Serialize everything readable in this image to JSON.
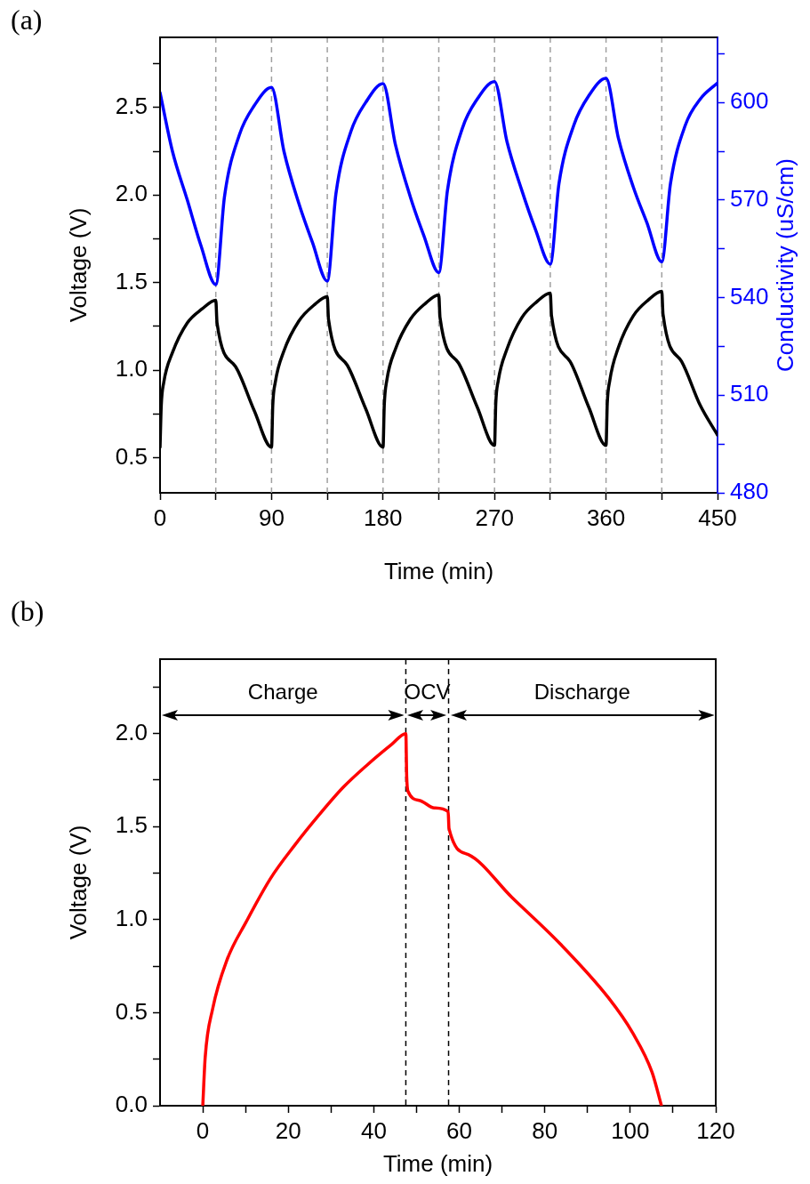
{
  "chart_data": [
    {
      "type": "line",
      "title": "(a)",
      "xlabel": "Time (min)",
      "ylabel": "Voltage (V)",
      "y2label": "Conductivity (uS/cm)",
      "xlim": [
        0,
        450
      ],
      "xticks": [
        0,
        {
          "value": 45,
          "label": null
        },
        90,
        {
          "value": 135,
          "label": null
        },
        180,
        {
          "value": 225,
          "label": null
        },
        270,
        {
          "value": 315,
          "label": null
        },
        360,
        {
          "value": 405,
          "label": null
        },
        450
      ],
      "ylim": [
        0.3,
        2.9
      ],
      "yticks": [
        0.5,
        {
          "value": 0.75,
          "label": null
        },
        {
          "value": 1,
          "label": "1.0"
        },
        {
          "value": 1.25,
          "label": null
        },
        1.5,
        {
          "value": 1.75,
          "label": null
        },
        {
          "value": 2,
          "label": "2.0"
        },
        {
          "value": 2.25,
          "label": null
        },
        2.5,
        {
          "value": 2.75,
          "label": null
        }
      ],
      "y2lim": [
        480,
        620
      ],
      "y2ticks": [
        480,
        {
          "value": 495,
          "label": null
        },
        510,
        {
          "value": 525,
          "label": null
        },
        540,
        {
          "value": 555,
          "label": null
        },
        570,
        {
          "value": 585,
          "label": null
        },
        600,
        {
          "value": 615,
          "label": null
        }
      ],
      "series": [
        {
          "color": "#000000",
          "x": [
            0,
            1,
            3,
            10,
            22,
            34,
            45,
            46,
            61,
            76,
            90,
            91,
            93,
            100,
            112,
            124,
            135,
            136,
            151,
            166,
            180,
            181,
            183,
            190,
            202,
            214,
            225,
            226,
            241,
            256,
            270,
            271,
            273,
            280,
            292,
            304,
            315,
            316,
            331,
            346,
            360,
            361,
            363,
            370,
            382,
            394,
            405,
            406,
            421,
            436,
            450
          ],
          "values": [
            0.56,
            0.8,
            0.93,
            1.1,
            1.27,
            1.35,
            1.4,
            1.27,
            1.02,
            0.77,
            0.56,
            0.8,
            0.93,
            1.11,
            1.28,
            1.37,
            1.42,
            1.29,
            1.03,
            0.78,
            0.56,
            0.8,
            0.94,
            1.12,
            1.29,
            1.38,
            1.43,
            1.3,
            1.04,
            0.79,
            0.57,
            0.81,
            0.94,
            1.12,
            1.3,
            1.39,
            1.44,
            1.31,
            1.05,
            0.79,
            0.57,
            0.81,
            0.94,
            1.13,
            1.31,
            1.4,
            1.45,
            1.32,
            1.05,
            0.8,
            0.63
          ]
        },
        {
          "color": "#0000ff",
          "axis": "y2",
          "x": [
            0,
            10,
            22,
            33,
            45,
            52,
            64,
            76,
            90,
            100,
            112,
            123,
            135,
            142,
            154,
            166,
            180,
            190,
            202,
            213,
            225,
            232,
            244,
            256,
            270,
            280,
            292,
            303,
            315,
            322,
            334,
            346,
            360,
            370,
            382,
            393,
            405,
            412,
            424,
            436,
            450
          ],
          "values": [
            603,
            585,
            570,
            556,
            544,
            571,
            590,
            599,
            604.6,
            585,
            569,
            557,
            545.1,
            572,
            591,
            600,
            605.8,
            587,
            571,
            559,
            547.7,
            573,
            592,
            601,
            606.4,
            588,
            573,
            561,
            550.3,
            575,
            593,
            602,
            607.4,
            589,
            574,
            563,
            551,
            575,
            593,
            601,
            606
          ]
        }
      ],
      "ref_lines": [
        {
          "axis": "x",
          "value": 45,
          "color": "#a0a0a0",
          "line_style": "dashed"
        },
        {
          "axis": "x",
          "value": 90,
          "color": "#a0a0a0",
          "line_style": "dashed"
        },
        {
          "axis": "x",
          "value": 135,
          "color": "#a0a0a0",
          "line_style": "dashed"
        },
        {
          "axis": "x",
          "value": 180,
          "color": "#a0a0a0",
          "line_style": "dashed"
        },
        {
          "axis": "x",
          "value": 225,
          "color": "#a0a0a0",
          "line_style": "dashed"
        },
        {
          "axis": "x",
          "value": 270,
          "color": "#a0a0a0",
          "line_style": "dashed"
        },
        {
          "axis": "x",
          "value": 315,
          "color": "#a0a0a0",
          "line_style": "dashed"
        },
        {
          "axis": "x",
          "value": 360,
          "color": "#a0a0a0",
          "line_style": "dashed"
        },
        {
          "axis": "x",
          "value": 405,
          "color": "#a0a0a0",
          "line_style": "dashed"
        }
      ]
    },
    {
      "type": "line",
      "title": "(b)",
      "xlabel": "Time (min)",
      "ylabel": "Voltage (V)",
      "xlim": [
        -10,
        120
      ],
      "xticks": [
        0,
        {
          "value": 10,
          "label": null
        },
        20,
        {
          "value": 30,
          "label": null
        },
        40,
        {
          "value": 50,
          "label": null
        },
        60,
        {
          "value": 70,
          "label": null
        },
        80,
        {
          "value": 90,
          "label": null
        },
        100,
        {
          "value": 110,
          "label": null
        },
        120
      ],
      "ylim": [
        0,
        2.4
      ],
      "yticks": [
        {
          "value": 0,
          "label": "0.0"
        },
        {
          "value": 0.25,
          "label": null
        },
        0.5,
        {
          "value": 0.75,
          "label": null
        },
        {
          "value": 1,
          "label": "1.0"
        },
        {
          "value": 1.25,
          "label": null
        },
        1.5,
        {
          "value": 1.75,
          "label": null
        },
        {
          "value": 2,
          "label": "2.0"
        },
        {
          "value": 2.25,
          "label": null
        }
      ],
      "series": [
        {
          "color": "#ff0000",
          "x": [
            0,
            0.56,
            2.3,
            5.6,
            10.2,
            15.8,
            21.5,
            27.1,
            32.8,
            38.4,
            44.1,
            47.5,
            47.7,
            48,
            50.8,
            54.2,
            57.4,
            57.6,
            62.1,
            72.3,
            83.6,
            94.9,
            100.6,
            105.1,
            107.3
          ],
          "values": [
            0,
            0.26,
            0.52,
            0.78,
            0.99,
            1.22,
            1.4,
            1.56,
            1.71,
            1.83,
            1.94,
            2,
            1.77,
            1.69,
            1.64,
            1.6,
            1.58,
            1.49,
            1.35,
            1.12,
            0.87,
            0.58,
            0.39,
            0.18,
            0
          ]
        }
      ],
      "ref_lines": [
        {
          "axis": "x",
          "value": 47.5,
          "color": "#000000",
          "line_style": "dashed"
        },
        {
          "axis": "x",
          "value": 57.5,
          "color": "#000000",
          "line_style": "dashed"
        }
      ],
      "annotations": [
        "Charge",
        "OCV",
        "Discharge"
      ]
    }
  ]
}
